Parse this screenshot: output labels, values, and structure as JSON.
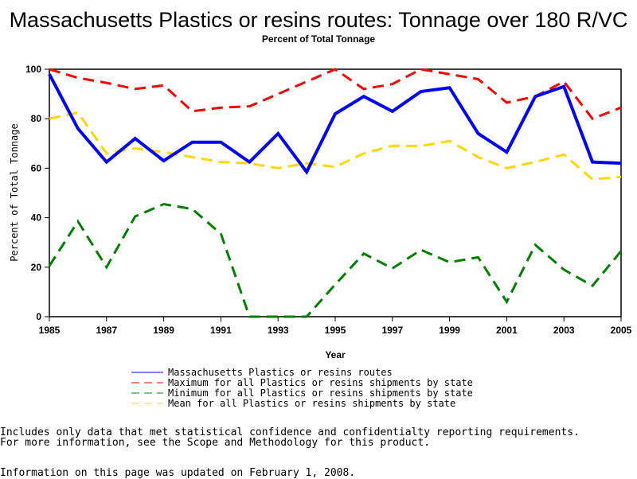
{
  "chart_data": {
    "type": "line",
    "title": "Massachusetts Plastics or resins routes: Tonnage over 180 R/VC",
    "subtitle": "Percent of Total Tonnage",
    "xlabel": "Year",
    "ylabel": "Percent of Total Tonnage",
    "xlim": [
      1985,
      2005
    ],
    "ylim": [
      0,
      100
    ],
    "x": [
      1985,
      1986,
      1987,
      1988,
      1989,
      1990,
      1991,
      1992,
      1993,
      1994,
      1995,
      1996,
      1997,
      1998,
      1999,
      2000,
      2001,
      2002,
      2003,
      2004,
      2005
    ],
    "xticks": [
      "1985",
      "1987",
      "1989",
      "1991",
      "1993",
      "1995",
      "1997",
      "1999",
      "2001",
      "2003",
      "2005"
    ],
    "yticks": [
      "0",
      "20",
      "40",
      "60",
      "80",
      "100"
    ],
    "legend_position": "bottom",
    "series": [
      {
        "name": "Massachusetts Plastics or resins routes",
        "color": "#0000ff",
        "style": "solid",
        "values": [
          98,
          76,
          62.5,
          72,
          63,
          70.5,
          70.5,
          62.5,
          74,
          58.5,
          82,
          89,
          83,
          91,
          92.5,
          74,
          66.5,
          89,
          93,
          62.5,
          62
        ]
      },
      {
        "name": "Maximum for all Plastics or resins shipments by state",
        "color": "#ff0000",
        "style": "dashed",
        "values": [
          100,
          96.5,
          94.5,
          92,
          93.5,
          83,
          84.5,
          85,
          90,
          95,
          100,
          92,
          94,
          100,
          98,
          96,
          86.5,
          89,
          95,
          80,
          84.5
        ]
      },
      {
        "name": "Minimum for all Plastics or resins shipments by state",
        "color": "#008000",
        "style": "dashed",
        "values": [
          20.5,
          38.5,
          20,
          40.5,
          45.5,
          43.5,
          33.5,
          0,
          0,
          0,
          13,
          25.5,
          19.5,
          27,
          22,
          24,
          6,
          29,
          19,
          12.5,
          26.5
        ]
      },
      {
        "name": "Mean for all Plastics or resins shipments by state",
        "color": "#ffd700",
        "style": "dashed",
        "values": [
          80,
          82.5,
          66,
          68,
          66.5,
          64.5,
          62.5,
          62,
          60,
          62,
          60.5,
          66,
          69,
          69,
          71,
          64.5,
          60,
          62.5,
          65.5,
          55.5,
          56.5
        ]
      }
    ]
  },
  "footer": {
    "line1": "Includes only data that met statistical confidence and confidentialty reporting requirements.",
    "line2": "For more information, see the Scope and Methodology for this product.",
    "line3": "Information on this page was updated on February 1, 2008."
  }
}
